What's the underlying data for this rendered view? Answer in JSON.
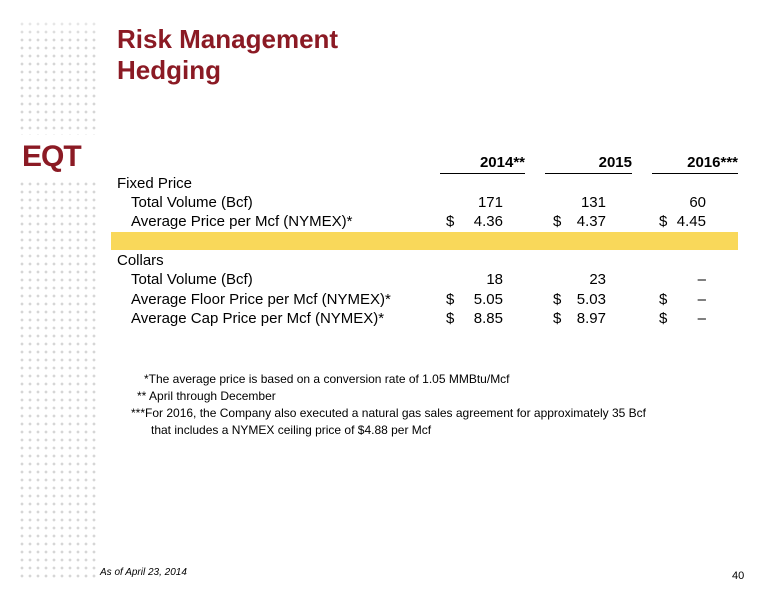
{
  "title_line1": "Risk Management",
  "title_line2": "Hedging",
  "logo_text": "EQT",
  "columns": [
    "2014**",
    "2015",
    "2016***"
  ],
  "fixed_price": {
    "section_label": "Fixed Price",
    "rows": [
      {
        "label": "Total Volume (Bcf)",
        "v2014": "171",
        "v2015": "131",
        "v2016": "60"
      },
      {
        "label": "Average Price per Mcf (NYMEX)*",
        "d2014": "$",
        "v2014": "4.36",
        "d2015": "$",
        "v2015": "4.37",
        "d2016": "$",
        "v2016": "4.45"
      }
    ]
  },
  "collars": {
    "section_label": "Collars",
    "rows": [
      {
        "label": "Total Volume (Bcf)",
        "v2014": "18",
        "v2015": "23",
        "v2016": "–"
      },
      {
        "label": "Average Floor Price per Mcf (NYMEX)*",
        "d2014": "$",
        "v2014": "5.05",
        "d2015": "$",
        "v2015": "5.03",
        "d2016": "$",
        "v2016": "–"
      },
      {
        "label": "Average Cap Price per Mcf (NYMEX)*",
        "d2014": "$",
        "v2014": "8.85",
        "d2015": "$",
        "v2015": "8.97",
        "d2016": "$",
        "v2016": "–"
      }
    ]
  },
  "notes": [
    "*The average price is based on a conversion rate of 1.05 MMBtu/Mcf",
    "** April through December",
    "***For 2016, the Company also executed a natural gas sales agreement for approximately 35 Bcf",
    "that includes a NYMEX ceiling price of $4.88 per Mcf"
  ],
  "footer": {
    "as_of": "As of April 23, 2014",
    "page_number": "40"
  },
  "colors": {
    "brand": "#8b1a24",
    "highlight_band": "#f9d85a"
  }
}
